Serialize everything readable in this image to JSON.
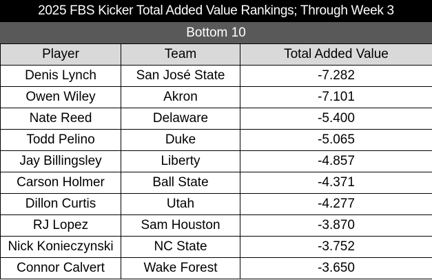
{
  "title": "2025 FBS Kicker Total Added Value Rankings; Through Week 3",
  "subtitle": "Bottom 10",
  "columns": [
    "Player",
    "Team",
    "Total Added Value"
  ],
  "rows": [
    {
      "player": "Denis Lynch",
      "team": "San José State",
      "value": "-7.282"
    },
    {
      "player": "Owen Wiley",
      "team": "Akron",
      "value": "-7.101"
    },
    {
      "player": "Nate Reed",
      "team": "Delaware",
      "value": "-5.400"
    },
    {
      "player": "Todd Pelino",
      "team": "Duke",
      "value": "-5.065"
    },
    {
      "player": "Jay Billingsley",
      "team": "Liberty",
      "value": "-4.857"
    },
    {
      "player": "Carson Holmer",
      "team": "Ball State",
      "value": "-4.371"
    },
    {
      "player": "Dillon Curtis",
      "team": "Utah",
      "value": "-4.277"
    },
    {
      "player": "RJ Lopez",
      "team": "Sam Houston",
      "value": "-3.870"
    },
    {
      "player": "Nick Konieczynski",
      "team": "NC State",
      "value": "-3.752"
    },
    {
      "player": "Connor Calvert",
      "team": "Wake Forest",
      "value": "-3.650"
    }
  ],
  "colors": {
    "title_bg": "#000000",
    "subtitle_bg": "#595959",
    "header_bg": "#d9d9d9",
    "text_light": "#ffffff",
    "text_dark": "#000000"
  }
}
